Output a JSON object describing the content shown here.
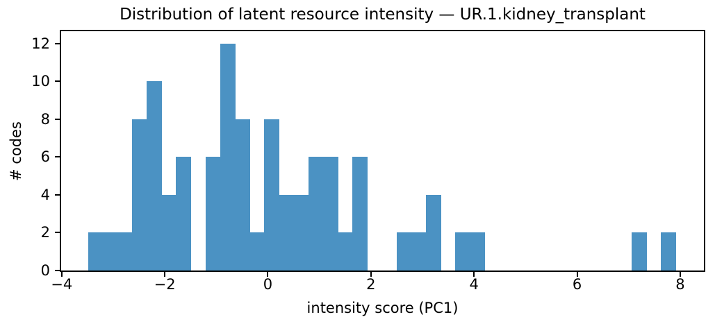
{
  "chart_data": {
    "type": "bar",
    "subtype": "histogram",
    "title": "Distribution of latent resource intensity — UR.1.kidney_transplant",
    "xlabel": "intensity score (PC1)",
    "ylabel": "# codes",
    "bin_start": -3.49,
    "bin_width": 0.285,
    "counts": [
      2,
      2,
      2,
      8,
      10,
      4,
      6,
      0,
      6,
      12,
      8,
      2,
      8,
      4,
      4,
      6,
      6,
      2,
      6,
      0,
      0,
      2,
      2,
      4,
      0,
      2,
      2,
      0,
      0,
      0,
      0,
      0,
      0,
      0,
      0,
      0,
      0,
      2,
      0,
      2
    ],
    "xlim": [
      -4.01,
      8.46
    ],
    "ylim": [
      0,
      12.65
    ],
    "xticks": [
      -4,
      -2,
      0,
      2,
      4,
      6,
      8
    ],
    "xtick_labels": [
      "−4",
      "−2",
      "0",
      "2",
      "4",
      "6",
      "8"
    ],
    "yticks": [
      0,
      2,
      4,
      6,
      8,
      10,
      12
    ],
    "ytick_labels": [
      "0",
      "2",
      "4",
      "6",
      "8",
      "10",
      "12"
    ],
    "grid": false,
    "legend": null,
    "colors": {
      "bar": "#4b92c3",
      "axis": "#000000",
      "text": "#000000",
      "background": "#ffffff"
    }
  }
}
